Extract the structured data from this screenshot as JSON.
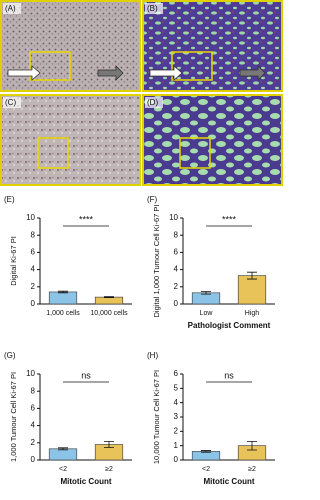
{
  "images": [
    {
      "label": "(A)"
    },
    {
      "label": "(B)"
    },
    {
      "label": "(C)"
    },
    {
      "label": "(D)"
    }
  ],
  "chart_data": [
    {
      "type": "bar",
      "panel": "(E)",
      "ylabel": "Digital Ki-67 PI",
      "categories": [
        "1,000 cells",
        "10,000 cells"
      ],
      "values": [
        1.4,
        0.8
      ],
      "errors": [
        0.1,
        0.05
      ],
      "colors": [
        "#8cc4e8",
        "#e8c35a"
      ],
      "ylim": [
        0,
        10
      ],
      "yticks": [
        0,
        2,
        4,
        6,
        8,
        10
      ],
      "annotation": "****"
    },
    {
      "type": "bar",
      "panel": "(F)",
      "ylabel": "Digital 1,000 Tumour Cell Ki-67 PI",
      "xlabel": "Pathologist Comment",
      "categories": [
        "Low",
        "High"
      ],
      "values": [
        1.3,
        3.3
      ],
      "errors": [
        0.15,
        0.4
      ],
      "colors": [
        "#8cc4e8",
        "#e8c35a"
      ],
      "ylim": [
        0,
        10
      ],
      "yticks": [
        0,
        2,
        4,
        6,
        8,
        10
      ],
      "annotation": "****"
    },
    {
      "type": "bar",
      "panel": "(G)",
      "ylabel": "1,000 Tumour Cell Ki-67 PI",
      "xlabel": "Mitotic Count",
      "categories": [
        "<2",
        "≥2"
      ],
      "values": [
        1.3,
        1.8
      ],
      "errors": [
        0.12,
        0.35
      ],
      "colors": [
        "#8cc4e8",
        "#e8c35a"
      ],
      "ylim": [
        0,
        10
      ],
      "yticks": [
        0,
        2,
        4,
        6,
        8,
        10
      ],
      "annotation": "ns"
    },
    {
      "type": "bar",
      "panel": "(H)",
      "ylabel": "10,000 Tumour Cell Ki-67 PI",
      "xlabel": "Mitotic Count",
      "categories": [
        "<2",
        "≥2"
      ],
      "values": [
        0.6,
        1.0
      ],
      "errors": [
        0.06,
        0.3
      ],
      "colors": [
        "#8cc4e8",
        "#e8c35a"
      ],
      "ylim": [
        0,
        6
      ],
      "yticks": [
        0,
        1,
        2,
        3,
        4,
        5,
        6
      ],
      "annotation": "ns"
    }
  ]
}
